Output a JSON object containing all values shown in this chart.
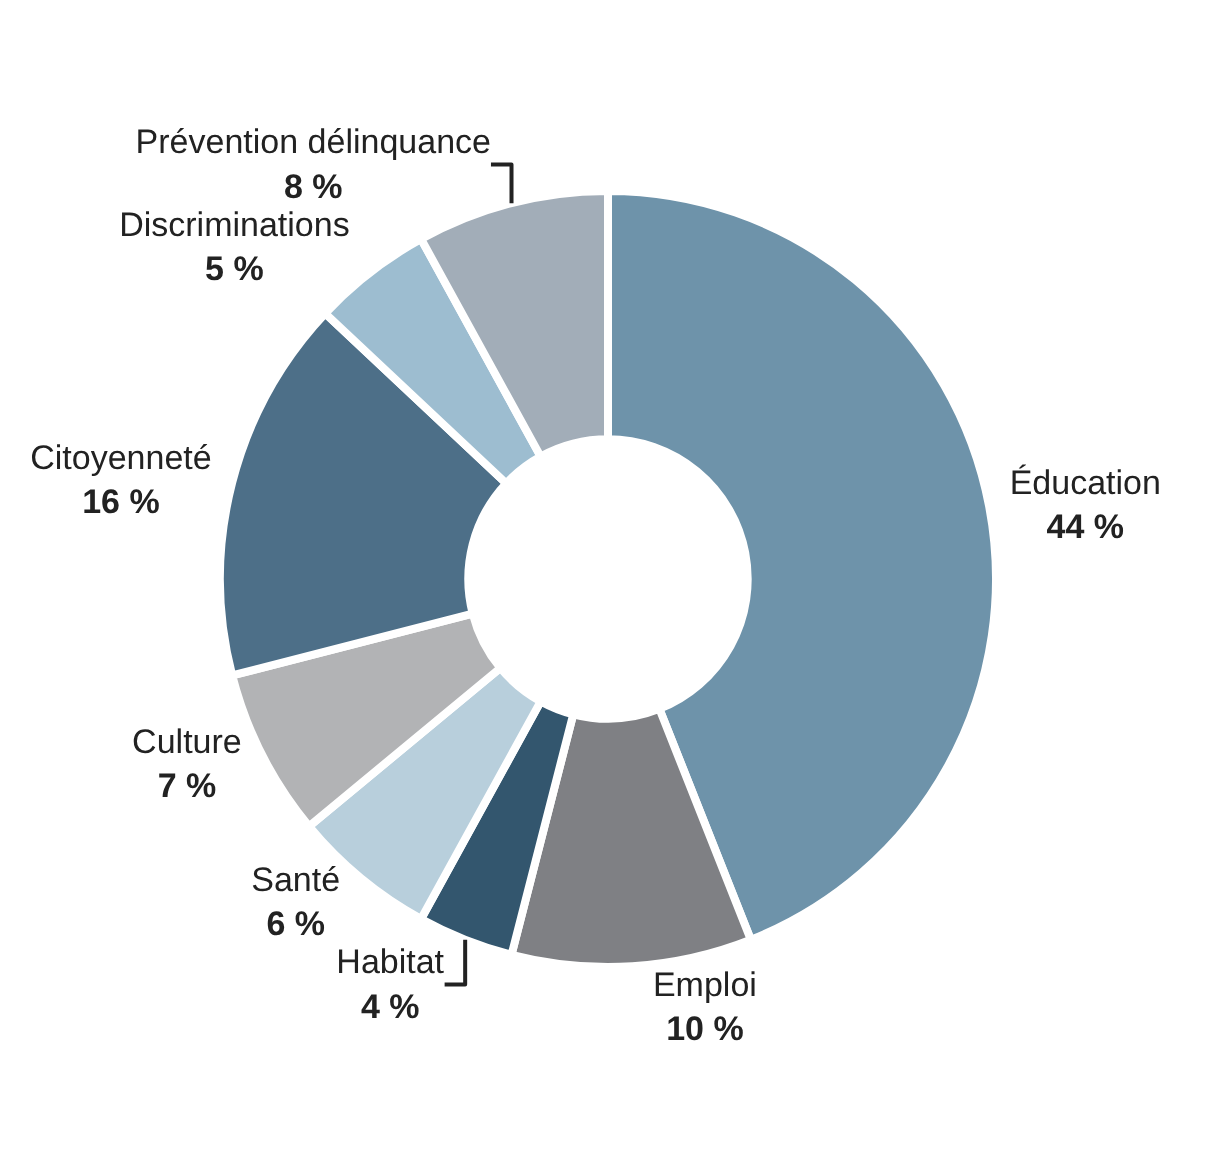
{
  "chart_data": {
    "type": "donut",
    "categories": [
      "Éducation",
      "Emploi",
      "Habitat",
      "Santé",
      "Culture",
      "Citoyenneté",
      "Discriminations",
      "Prévention délinquance"
    ],
    "values": [
      44,
      10,
      4,
      6,
      7,
      16,
      5,
      8
    ],
    "value_labels": [
      "44 %",
      "10 %",
      "4 %",
      "6 %",
      "7 %",
      "16 %",
      "5 %",
      "8 %"
    ],
    "colors": [
      "#6e93aa",
      "#7f8084",
      "#33566e",
      "#b8cfdc",
      "#b2b3b5",
      "#4d6f88",
      "#9dbdd0",
      "#a2adb8"
    ],
    "legend": false
  }
}
